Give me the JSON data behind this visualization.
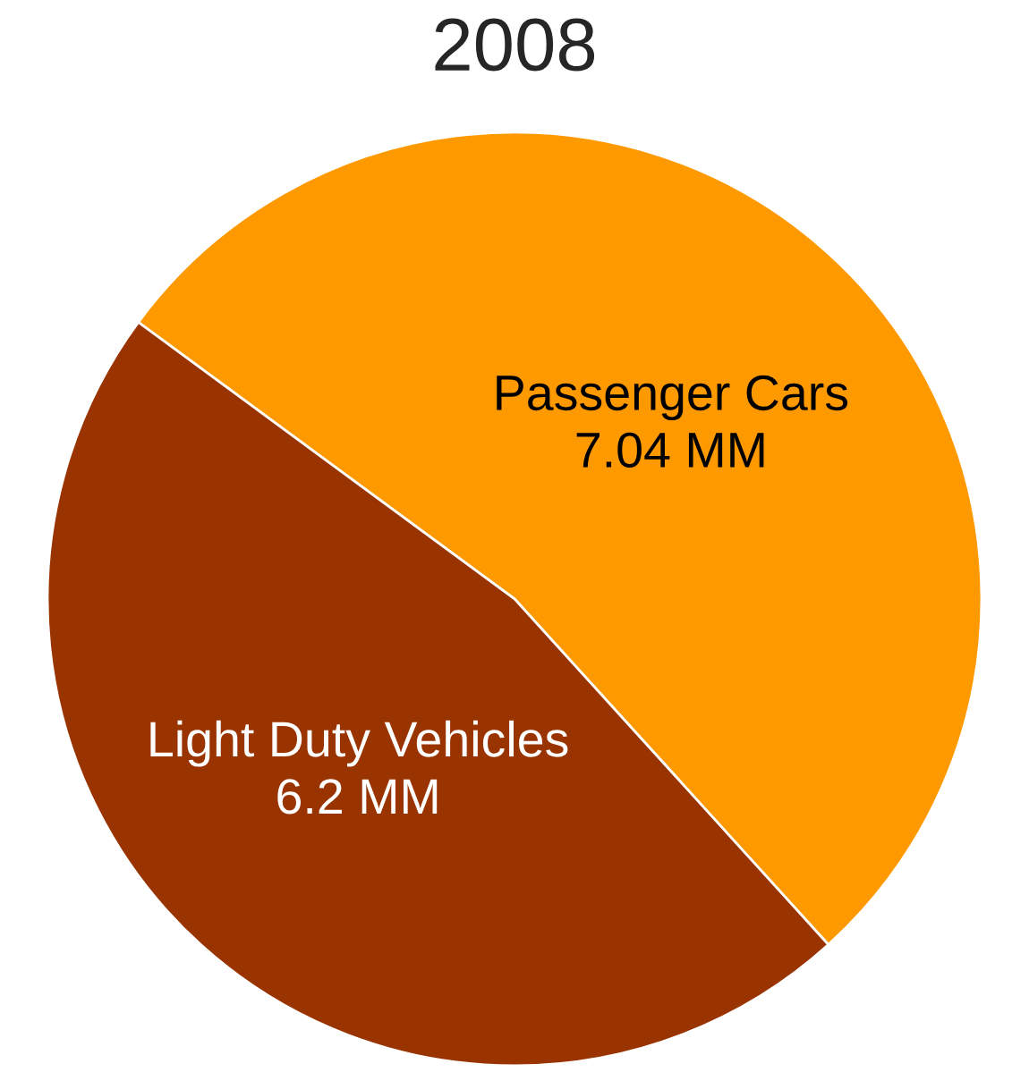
{
  "chart_data": {
    "type": "pie",
    "title": "2008",
    "categories": [
      "Passenger Cars",
      "Light Duty Vehicles"
    ],
    "values": [
      7.04,
      6.2
    ],
    "value_labels": [
      "7.04 MM",
      "6.2 MM"
    ],
    "colors": [
      "#ff9900",
      "#993300"
    ]
  }
}
